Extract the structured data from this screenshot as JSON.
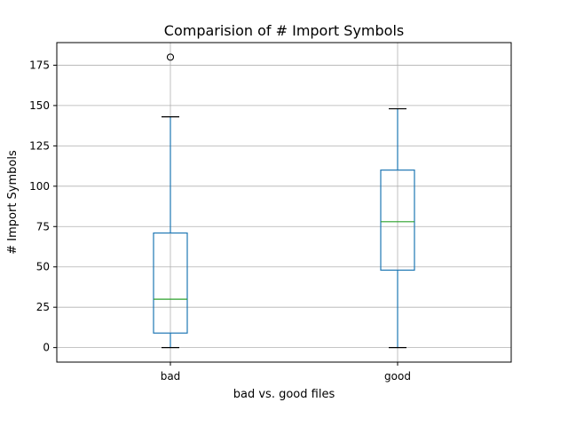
{
  "chart_data": {
    "type": "box",
    "title": "Comparision of # Import Symbols",
    "xlabel": "bad vs. good files",
    "ylabel": "# Import Symbols",
    "ylim": [
      -9,
      189
    ],
    "yticks": [
      0,
      25,
      50,
      75,
      100,
      125,
      150,
      175
    ],
    "grid": true,
    "categories": [
      "bad",
      "good"
    ],
    "boxes": [
      {
        "name": "bad",
        "whisker_low": 0,
        "q1": 9,
        "median": 30,
        "q3": 71,
        "whisker_high": 143,
        "outliers": [
          180
        ]
      },
      {
        "name": "good",
        "whisker_low": 0,
        "q1": 48,
        "median": 78,
        "q3": 110,
        "whisker_high": 148,
        "outliers": []
      }
    ],
    "colors": {
      "box": "#1f77b4",
      "median": "#2ca02c",
      "cap": "#000000",
      "grid": "#b0b0b0",
      "axes": "#000000"
    }
  }
}
